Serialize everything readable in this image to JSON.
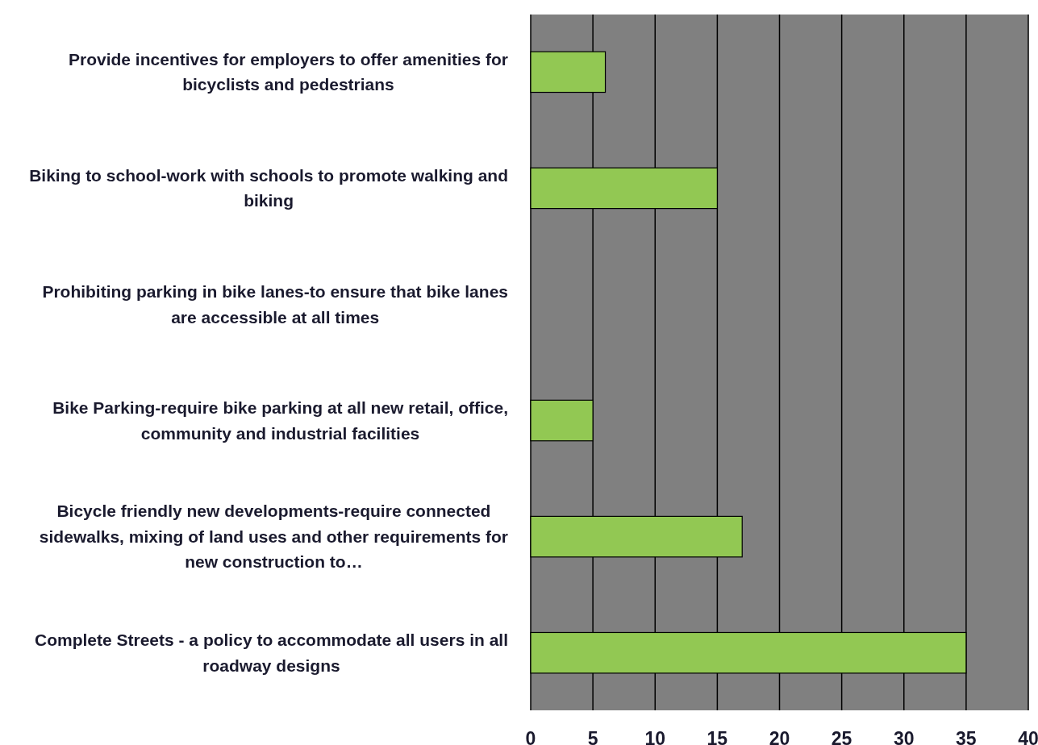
{
  "chart_data": {
    "type": "bar",
    "orientation": "horizontal",
    "categories": [
      "Provide incentives for employers to offer amenities for bicyclists and pedestrians",
      "Biking to school-work with schools to promote walking and biking",
      "Prohibiting parking in bike lanes-to ensure that bike lanes are accessible at all times",
      "Bike Parking-require bike parking at all new retail, office, community and industrial facilities",
      "Bicycle friendly new developments-require connected sidewalks, mixing of land uses and other requirements for new construction to…",
      "Complete Streets - a policy to accommodate all users in all roadway designs"
    ],
    "values": [
      6,
      15,
      0,
      5,
      17,
      35
    ],
    "color": "#92c853",
    "xlim": [
      0,
      40
    ],
    "xticks": [
      0,
      5,
      10,
      15,
      20,
      25,
      30,
      35,
      40
    ],
    "grid": "x"
  }
}
